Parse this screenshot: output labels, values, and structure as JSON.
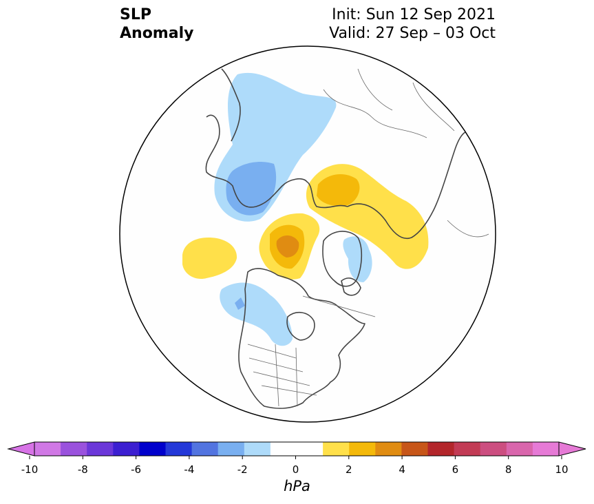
{
  "title": {
    "line1": "SLP",
    "line2": "Anomaly"
  },
  "info": {
    "init": "Init: Sun 12 Sep 2021",
    "valid": "Valid: 27 Sep – 03 Oct"
  },
  "colorbar": {
    "unit": "hPa",
    "ticks": [
      "-10",
      "-8",
      "-6",
      "-4",
      "-2",
      "0",
      "2",
      "4",
      "6",
      "8",
      "10"
    ],
    "under_color": "#d773e6",
    "over_color": "#e67ad6",
    "colors": [
      "#d078e5",
      "#9a52dd",
      "#6b37d9",
      "#3c1fd1",
      "#0000cc",
      "#2438d8",
      "#5274e0",
      "#79aff0",
      "#aedbfa",
      "#ffffff",
      "#ffffff",
      "#ffe04a",
      "#f4b90a",
      "#e08c12",
      "#c75619",
      "#b3262b",
      "#c23b55",
      "#cc4e80",
      "#d966ac",
      "#e67ad6"
    ]
  },
  "map": {
    "projection": "north polar stereographic",
    "ocean_color": "#fefefe",
    "coast_color": "#444444"
  }
}
